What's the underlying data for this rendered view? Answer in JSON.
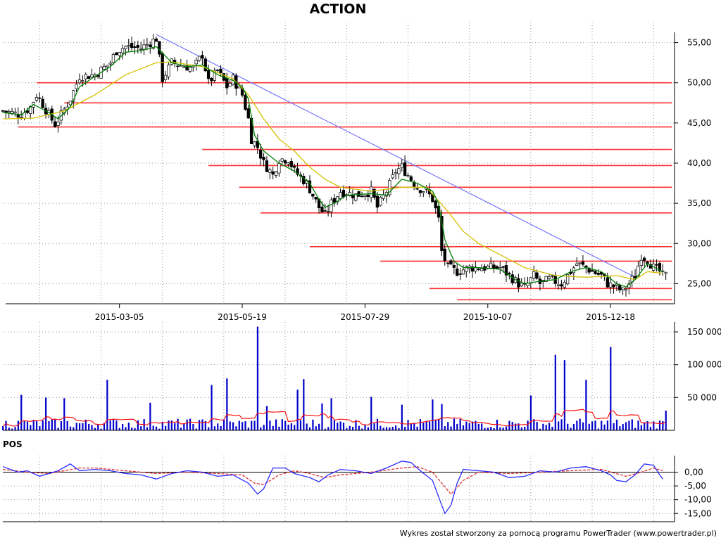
{
  "chart_data": [
    {
      "panel": "price",
      "type": "candlestick",
      "title": "ACTION",
      "x_ticks": [
        "2015-03-05",
        "2015-05-19",
        "2015-07-29",
        "2015-10-07",
        "2015-12-18"
      ],
      "y_ticks": [
        "25,00",
        "30,00",
        "35,00",
        "40,00",
        "45,00",
        "50,00",
        "55,00"
      ],
      "ylim": [
        22.5,
        57.5
      ],
      "grid": true,
      "close_path": [
        [
          0,
          46.5
        ],
        [
          6,
          46.0
        ],
        [
          9,
          47.0
        ],
        [
          11,
          48.5
        ],
        [
          12,
          48.0
        ],
        [
          15,
          46.0
        ],
        [
          17,
          44.8
        ],
        [
          19,
          46.0
        ],
        [
          22,
          48.0
        ],
        [
          25,
          50.8
        ],
        [
          30,
          51.0
        ],
        [
          35,
          52.5
        ],
        [
          37,
          54.0
        ],
        [
          40,
          54.5
        ],
        [
          45,
          54.3
        ],
        [
          50,
          55.5
        ],
        [
          51,
          53.0
        ],
        [
          52,
          50.5
        ],
        [
          55,
          52.5
        ],
        [
          58,
          52.2
        ],
        [
          62,
          51.8
        ],
        [
          65,
          53.5
        ],
        [
          67,
          50.0
        ],
        [
          70,
          51.5
        ],
        [
          73,
          49.5
        ],
        [
          75,
          50.5
        ],
        [
          78,
          48.5
        ],
        [
          80,
          45.5
        ],
        [
          81,
          43.0
        ],
        [
          83,
          42.0
        ],
        [
          85,
          40.0
        ],
        [
          88,
          38.5
        ],
        [
          90,
          40.5
        ],
        [
          93,
          40.5
        ],
        [
          95,
          39.0
        ],
        [
          99,
          37.5
        ],
        [
          101,
          36.0
        ],
        [
          103,
          34.5
        ],
        [
          105,
          33.5
        ],
        [
          107,
          35.0
        ],
        [
          110,
          36.5
        ],
        [
          115,
          36.0
        ],
        [
          120,
          36.5
        ],
        [
          122,
          34.5
        ],
        [
          125,
          36.5
        ],
        [
          128,
          39.0
        ],
        [
          130,
          39.5
        ],
        [
          132,
          38.5
        ],
        [
          135,
          37.0
        ],
        [
          138,
          36.5
        ],
        [
          140,
          35.5
        ],
        [
          142,
          33.0
        ],
        [
          143,
          29.0
        ],
        [
          145,
          27.0
        ],
        [
          148,
          26.5
        ],
        [
          152,
          27.0
        ],
        [
          157,
          27.0
        ],
        [
          162,
          27.0
        ],
        [
          165,
          26.0
        ],
        [
          168,
          25.0
        ],
        [
          170,
          24.5
        ],
        [
          173,
          26.0
        ],
        [
          175,
          25.0
        ],
        [
          178,
          25.5
        ],
        [
          182,
          25.0
        ],
        [
          185,
          26.5
        ],
        [
          187,
          27.5
        ],
        [
          190,
          27.0
        ],
        [
          192,
          26.5
        ],
        [
          195,
          26.0
        ],
        [
          197,
          25.0
        ],
        [
          200,
          24.5
        ],
        [
          202,
          24.0
        ],
        [
          204,
          25.0
        ],
        [
          206,
          26.0
        ],
        [
          208,
          28.5
        ],
        [
          210,
          28.0
        ],
        [
          212,
          27.0
        ],
        [
          214,
          26.5
        ],
        [
          215,
          26.0
        ]
      ],
      "sma_slow": [
        [
          0,
          45.5
        ],
        [
          10,
          45.6
        ],
        [
          20,
          46.5
        ],
        [
          30,
          48.5
        ],
        [
          40,
          51.0
        ],
        [
          50,
          52.5
        ],
        [
          55,
          52.6
        ],
        [
          65,
          52.0
        ],
        [
          75,
          50.5
        ],
        [
          80,
          48.5
        ],
        [
          85,
          45.5
        ],
        [
          90,
          43.0
        ],
        [
          95,
          41.5
        ],
        [
          100,
          39.5
        ],
        [
          105,
          38.0
        ],
        [
          110,
          37.0
        ],
        [
          120,
          36.5
        ],
        [
          130,
          37.0
        ],
        [
          138,
          37.0
        ],
        [
          145,
          34.0
        ],
        [
          150,
          31.5
        ],
        [
          155,
          30.0
        ],
        [
          160,
          29.0
        ],
        [
          165,
          28.0
        ],
        [
          170,
          27.0
        ],
        [
          180,
          26.0
        ],
        [
          190,
          25.8
        ],
        [
          200,
          26.0
        ],
        [
          206,
          25.5
        ],
        [
          210,
          26.5
        ],
        [
          215,
          26.3
        ]
      ],
      "sma_fast": [
        [
          0,
          46.3
        ],
        [
          6,
          46.0
        ],
        [
          10,
          47.3
        ],
        [
          15,
          46.3
        ],
        [
          18,
          45.5
        ],
        [
          22,
          47.0
        ],
        [
          25,
          49.5
        ],
        [
          30,
          50.8
        ],
        [
          35,
          52.0
        ],
        [
          40,
          53.8
        ],
        [
          45,
          54.0
        ],
        [
          50,
          54.5
        ],
        [
          55,
          52.5
        ],
        [
          60,
          52.0
        ],
        [
          65,
          52.2
        ],
        [
          70,
          51.0
        ],
        [
          75,
          50.3
        ],
        [
          78,
          49.5
        ],
        [
          80,
          48.0
        ],
        [
          82,
          43.5
        ],
        [
          85,
          41.5
        ],
        [
          90,
          40.0
        ],
        [
          95,
          39.0
        ],
        [
          100,
          37.5
        ],
        [
          103,
          35.5
        ],
        [
          105,
          34.5
        ],
        [
          108,
          35.0
        ],
        [
          112,
          36.0
        ],
        [
          120,
          36.2
        ],
        [
          125,
          36.0
        ],
        [
          130,
          38.0
        ],
        [
          135,
          37.5
        ],
        [
          140,
          36.5
        ],
        [
          142,
          35.0
        ],
        [
          144,
          30.5
        ],
        [
          147,
          27.8
        ],
        [
          150,
          27.0
        ],
        [
          155,
          27.0
        ],
        [
          162,
          26.8
        ],
        [
          167,
          25.5
        ],
        [
          170,
          25.0
        ],
        [
          175,
          25.3
        ],
        [
          180,
          25.5
        ],
        [
          185,
          26.5
        ],
        [
          190,
          27.0
        ],
        [
          195,
          26.5
        ],
        [
          200,
          25.0
        ],
        [
          203,
          24.6
        ],
        [
          206,
          25.5
        ],
        [
          210,
          27.5
        ],
        [
          215,
          26.5
        ]
      ],
      "trendline": [
        [
          50,
          56.0
        ],
        [
          206,
          25.8
        ]
      ],
      "support_resistance": [
        {
          "y": 50.0,
          "from": 11,
          "to": 218
        },
        {
          "y": 47.5,
          "from": 20,
          "to": 218
        },
        {
          "y": 44.5,
          "from": 5,
          "to": 218
        },
        {
          "y": 41.7,
          "from": 65,
          "to": 218
        },
        {
          "y": 39.7,
          "from": 67,
          "to": 218
        },
        {
          "y": 37.0,
          "from": 77,
          "to": 218
        },
        {
          "y": 33.8,
          "from": 84,
          "to": 218
        },
        {
          "y": 29.6,
          "from": 100,
          "to": 218
        },
        {
          "y": 27.8,
          "from": 123,
          "to": 218
        },
        {
          "y": 24.4,
          "from": 139,
          "to": 218
        },
        {
          "y": 23.0,
          "from": 148,
          "to": 218
        }
      ],
      "colors": {
        "candle": "#000000",
        "candle_up": "#ffffff",
        "sma_slow": "#d4c000",
        "sma_fast": "#008000",
        "trendline": "#6b6bff",
        "level": "#ff3030"
      }
    },
    {
      "panel": "volume",
      "type": "bar",
      "y_ticks": [
        "50 000",
        "100 000",
        "150 000"
      ],
      "ylim": [
        0,
        165000
      ],
      "spikes": [
        [
          6,
          54000
        ],
        [
          14,
          50000
        ],
        [
          20,
          49000
        ],
        [
          34,
          77000
        ],
        [
          48,
          42000
        ],
        [
          68,
          69000
        ],
        [
          73,
          79000
        ],
        [
          83,
          158000
        ],
        [
          86,
          37000
        ],
        [
          96,
          62000
        ],
        [
          98,
          78000
        ],
        [
          104,
          41000
        ],
        [
          107,
          49000
        ],
        [
          120,
          51000
        ],
        [
          130,
          39000
        ],
        [
          140,
          47000
        ],
        [
          143,
          40000
        ],
        [
          172,
          53000
        ],
        [
          180,
          115000
        ],
        [
          183,
          107000
        ],
        [
          190,
          77000
        ],
        [
          198,
          127000
        ],
        [
          216,
          30000
        ]
      ],
      "baseline_seed": 12000,
      "avg_line_level": 15000,
      "colors": {
        "bar": "#0000cc",
        "avg": "#ff0000"
      }
    },
    {
      "panel": "oscillator",
      "type": "line",
      "label": "POS",
      "y_ticks": [
        "0,00",
        "-5,00",
        "-10,00",
        "-15,00"
      ],
      "ylim": [
        -18,
        6
      ],
      "series": [
        {
          "role": "blue-oscillator",
          "points": [
            [
              0,
              2.0
            ],
            [
              5,
              0.0
            ],
            [
              8,
              0.5
            ],
            [
              12,
              -1.5
            ],
            [
              15,
              -0.5
            ],
            [
              18,
              0.5
            ],
            [
              22,
              3.0
            ],
            [
              25,
              0.5
            ],
            [
              30,
              1.0
            ],
            [
              35,
              0.5
            ],
            [
              40,
              -0.5
            ],
            [
              45,
              -1.0
            ],
            [
              50,
              -2.5
            ],
            [
              55,
              -0.5
            ],
            [
              60,
              0.5
            ],
            [
              65,
              0.0
            ],
            [
              70,
              -1.5
            ],
            [
              75,
              -1.0
            ],
            [
              80,
              -4.0
            ],
            [
              83,
              -8.0
            ],
            [
              85,
              -6.0
            ],
            [
              88,
              1.5
            ],
            [
              92,
              1.5
            ],
            [
              95,
              -0.5
            ],
            [
              100,
              -2.0
            ],
            [
              103,
              -3.5
            ],
            [
              106,
              -1.0
            ],
            [
              110,
              1.0
            ],
            [
              115,
              0.5
            ],
            [
              120,
              -0.5
            ],
            [
              125,
              1.5
            ],
            [
              130,
              4.0
            ],
            [
              133,
              3.5
            ],
            [
              136,
              0.5
            ],
            [
              140,
              -3.0
            ],
            [
              142,
              -9.0
            ],
            [
              144,
              -15.0
            ],
            [
              146,
              -12.0
            ],
            [
              148,
              -4.0
            ],
            [
              150,
              1.0
            ],
            [
              155,
              0.5
            ],
            [
              160,
              0.0
            ],
            [
              165,
              -2.0
            ],
            [
              170,
              -1.5
            ],
            [
              175,
              0.5
            ],
            [
              180,
              0.0
            ],
            [
              185,
              1.5
            ],
            [
              190,
              2.0
            ],
            [
              195,
              0.5
            ],
            [
              198,
              -1.0
            ],
            [
              200,
              -3.0
            ],
            [
              203,
              -3.5
            ],
            [
              206,
              -1.0
            ],
            [
              209,
              3.0
            ],
            [
              212,
              2.5
            ],
            [
              214,
              -1.0
            ],
            [
              215,
              -2.5
            ]
          ]
        },
        {
          "role": "red-signal-dashed",
          "points": [
            [
              0,
              1.0
            ],
            [
              8,
              0.0
            ],
            [
              15,
              -0.5
            ],
            [
              20,
              0.5
            ],
            [
              25,
              1.5
            ],
            [
              30,
              1.5
            ],
            [
              40,
              0.5
            ],
            [
              50,
              -0.5
            ],
            [
              60,
              0.0
            ],
            [
              70,
              -0.5
            ],
            [
              78,
              -1.0
            ],
            [
              82,
              -4.0
            ],
            [
              85,
              -4.5
            ],
            [
              90,
              -1.0
            ],
            [
              95,
              0.5
            ],
            [
              100,
              -0.5
            ],
            [
              105,
              -2.0
            ],
            [
              110,
              -1.0
            ],
            [
              120,
              0.0
            ],
            [
              130,
              1.5
            ],
            [
              135,
              2.0
            ],
            [
              140,
              0.0
            ],
            [
              143,
              -4.0
            ],
            [
              146,
              -8.0
            ],
            [
              150,
              -3.0
            ],
            [
              155,
              0.0
            ],
            [
              165,
              -0.5
            ],
            [
              175,
              0.0
            ],
            [
              185,
              0.5
            ],
            [
              195,
              1.0
            ],
            [
              203,
              -1.5
            ],
            [
              208,
              0.0
            ],
            [
              212,
              1.5
            ],
            [
              215,
              0.5
            ]
          ]
        }
      ],
      "colors": {
        "blue": "#2a2aff",
        "red": "#e03030"
      }
    }
  ],
  "footer": {
    "credit": "Wykres został stworzony za pomocą programu PowerTrader (www.powertrader.pl)"
  }
}
